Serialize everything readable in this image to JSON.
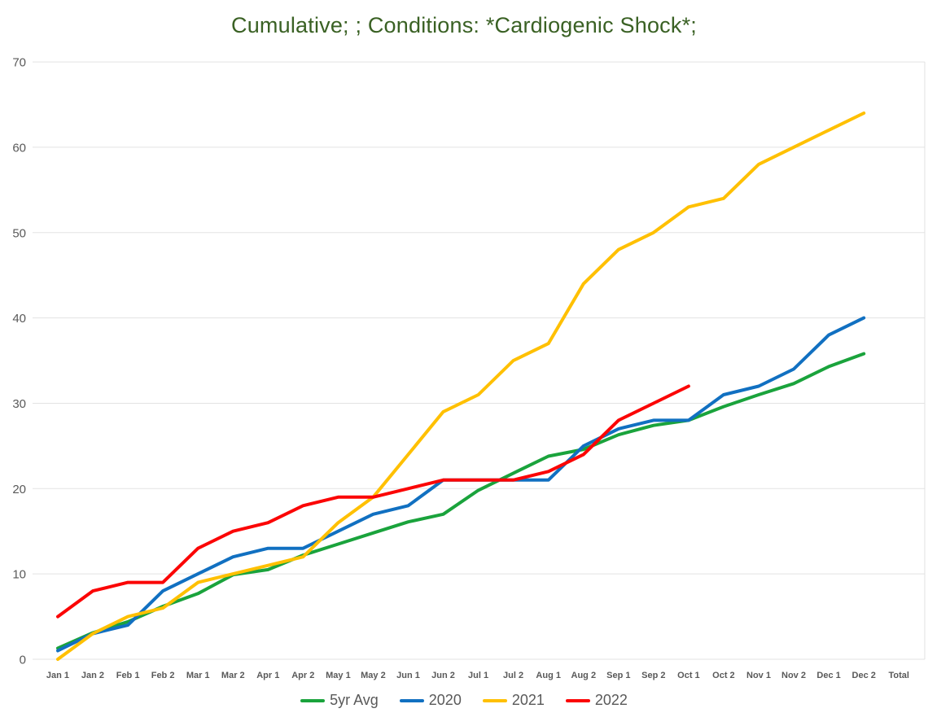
{
  "chart_data": {
    "type": "line",
    "title": "Cumulative; ; Conditions: *Cardiogenic Shock*;",
    "categories": [
      "Jan 1",
      "Jan 2",
      "Feb 1",
      "Feb 2",
      "Mar 1",
      "Mar 2",
      "Apr 1",
      "Apr 2",
      "May 1",
      "May 2",
      "Jun 1",
      "Jun 2",
      "Jul 1",
      "Jul 2",
      "Aug 1",
      "Aug 2",
      "Sep 1",
      "Sep 2",
      "Oct 1",
      "Oct 2",
      "Nov 1",
      "Nov 2",
      "Dec 1",
      "Dec 2",
      "Total"
    ],
    "series": [
      {
        "name": "5yr Avg",
        "color": "#1AA33C",
        "values": [
          1.3,
          3.1,
          4.4,
          6.2,
          7.7,
          9.9,
          10.5,
          12.2,
          13.5,
          14.8,
          16.1,
          17,
          19.8,
          21.8,
          23.8,
          24.6,
          26.3,
          27.4,
          28,
          29.6,
          31,
          32.3,
          34.3,
          35.8
        ]
      },
      {
        "name": "2020",
        "color": "#1170C1",
        "values": [
          1,
          3,
          4,
          8,
          10,
          12,
          13,
          13,
          15,
          17,
          18,
          21,
          21,
          21,
          21,
          25,
          27,
          28,
          28,
          31,
          32,
          34,
          38,
          40
        ]
      },
      {
        "name": "2021",
        "color": "#FFC000",
        "values": [
          0,
          3,
          5,
          6,
          9,
          10,
          11,
          12,
          16,
          19,
          24,
          29,
          31,
          35,
          37,
          44,
          48,
          50,
          53,
          54,
          58,
          60,
          62,
          64
        ]
      },
      {
        "name": "2022",
        "color": "#FB0505",
        "values": [
          5,
          8,
          9,
          9,
          13,
          15,
          16,
          18,
          19,
          19,
          20,
          21,
          21,
          21,
          22,
          24,
          28,
          30,
          32
        ]
      }
    ],
    "xlabel": "",
    "ylabel": "",
    "ylim": [
      0,
      70
    ],
    "yticks": [
      0,
      10,
      20,
      30,
      40,
      50,
      60,
      70
    ],
    "grid": "horizontal",
    "legend_position": "bottom"
  },
  "colors": {
    "title_text": "#3A6124",
    "axis_text": "#595959",
    "legend_text": "#595959",
    "gridline": "#E3E3E3",
    "plot_border": "#E0E0E0",
    "background": "#FFFFFF"
  }
}
